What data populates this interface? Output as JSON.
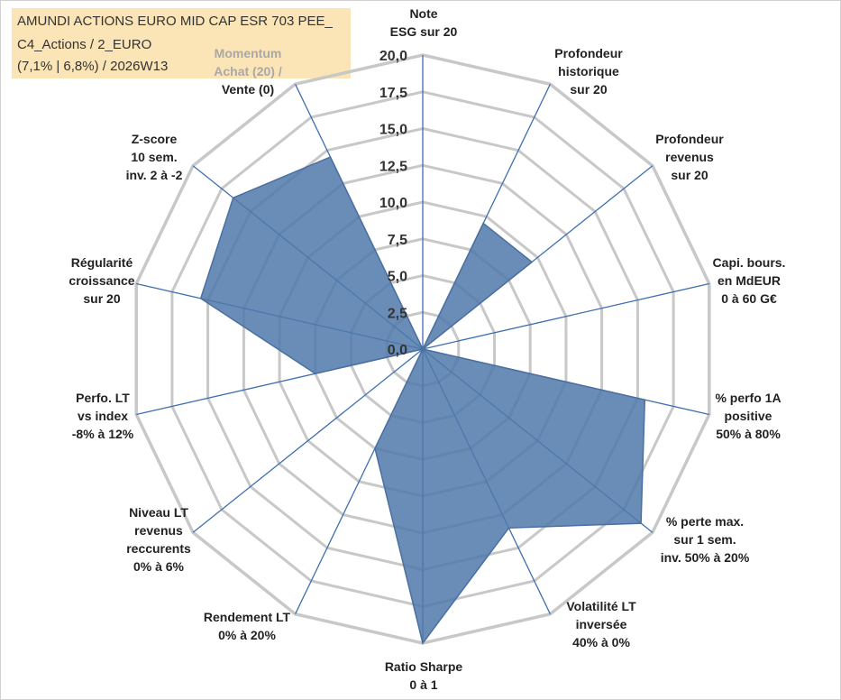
{
  "title_box": {
    "line1": "AMUNDI ACTIONS EURO MID CAP ESR 703 PEE_",
    "line2": "C4_Actions / 2_EURO",
    "line3": "(7,1% | 6,8%) / 2026W13"
  },
  "chart_data": {
    "type": "radar",
    "title": "AMUNDI ACTIONS EURO MID CAP ESR 703 PEE_ C4_Actions / 2_EURO (7,1% | 6,8%) / 2026W13",
    "rmax": 20,
    "ticks": [
      "0,0",
      "2,5",
      "5,0",
      "7,5",
      "10,0",
      "12,5",
      "15,0",
      "17,5",
      "20,0"
    ],
    "tick_values": [
      0,
      2.5,
      5,
      7.5,
      10,
      12.5,
      15,
      17.5,
      20
    ],
    "axes": [
      [
        "Note",
        "ESG sur 20"
      ],
      [
        "Profondeur",
        "historique",
        "sur 20"
      ],
      [
        "Profondeur",
        "revenus",
        "sur 20"
      ],
      [
        "Capi. bours.",
        "en MdEUR",
        "0 à 60 G€"
      ],
      [
        "% perfo 1A",
        "positive",
        "50% à 80%"
      ],
      [
        "% perte max.",
        "sur 1 sem.",
        "inv. 50% à 20%"
      ],
      [
        "Volatilité LT",
        "inversée",
        "40% à 0%"
      ],
      [
        "Ratio Sharpe",
        "0 à 1"
      ],
      [
        "Rendement LT",
        "0% à 20%"
      ],
      [
        "Niveau LT",
        "revenus",
        "reccurents",
        "0% à 6%"
      ],
      [
        "Perfo. LT",
        "vs index",
        "-8% à 12%"
      ],
      [
        "Régularité",
        "croissance",
        "sur 20"
      ],
      [
        "Z-score",
        "10 sem.",
        "inv. 2 à -2"
      ],
      [
        "Momentum",
        "Achat (20) /",
        "Vente (0)"
      ]
    ],
    "series": [
      {
        "name": "AMUNDI ACTIONS EURO MID CAP ESR 703 PEE_",
        "values": [
          0,
          9.5,
          9.5,
          0,
          15.5,
          19,
          13.5,
          20,
          7.5,
          0,
          7.5,
          15.5,
          16.5,
          14.5
        ],
        "color": "#4f79aa"
      }
    ],
    "colors": {
      "fill": "#4f79aa",
      "stroke": "#4a6fa0",
      "grid": "#c8c8c8",
      "spoke": "#3f6fb0"
    }
  }
}
